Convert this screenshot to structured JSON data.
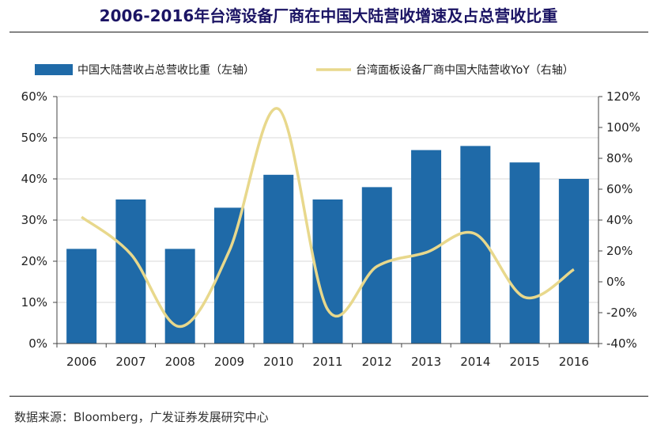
{
  "page": {
    "title": "2006-2016年台湾设备厂商在中国大陆营收增速及占总营收比重",
    "source": "数据来源：Bloomberg，广发证券发展研究中心"
  },
  "chart_data": {
    "type": "bar",
    "title": "2006-2016年台湾设备厂商在中国大陆营收增速及占总营收比重",
    "categories": [
      "2006",
      "2007",
      "2008",
      "2009",
      "2010",
      "2011",
      "2012",
      "2013",
      "2014",
      "2015",
      "2016"
    ],
    "series": [
      {
        "name": "中国大陆营收占总营收比重（左轴）",
        "type": "bar",
        "axis": "left",
        "color": "#1f6aa8",
        "values": [
          23,
          35,
          23,
          33,
          41,
          35,
          38,
          47,
          48,
          44,
          40
        ]
      },
      {
        "name": "台湾面板设备厂商中国大陆营收YoY（右轴）",
        "type": "line",
        "axis": "right",
        "color": "#e8d88c",
        "values": [
          42,
          18,
          -29,
          20,
          112,
          -18,
          10,
          19,
          31,
          -10,
          8
        ]
      }
    ],
    "y_left": {
      "min": 0,
      "max": 60,
      "step": 10,
      "ticks": [
        "0%",
        "10%",
        "20%",
        "30%",
        "40%",
        "50%",
        "60%"
      ]
    },
    "y_right": {
      "min": -40,
      "max": 120,
      "step": 20,
      "ticks": [
        "-40%",
        "-20%",
        "0%",
        "20%",
        "40%",
        "60%",
        "80%",
        "100%",
        "120%"
      ]
    },
    "legend_position": "top",
    "grid": "horizontal"
  }
}
